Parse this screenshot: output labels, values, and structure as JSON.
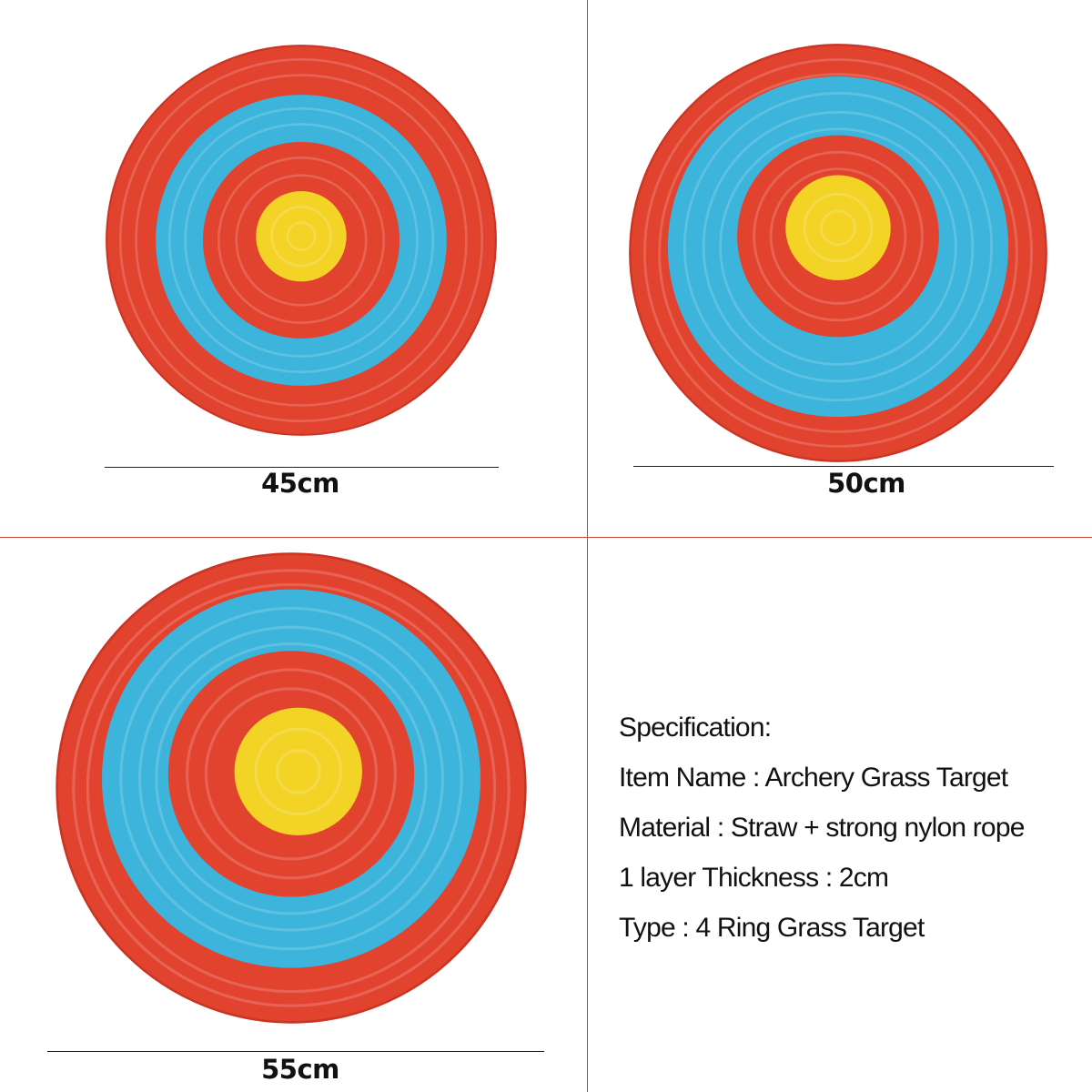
{
  "colors": {
    "outer_ring": "#e2432f",
    "middle_ring": "#3cb4dc",
    "inner_ring": "#e2432f",
    "center": "#f2d326",
    "divider": "#c8423a"
  },
  "targets": [
    {
      "size_label": "45cm"
    },
    {
      "size_label": "50cm"
    },
    {
      "size_label": "55cm"
    }
  ],
  "specification": {
    "heading": "Specification:",
    "item_name": "Item Name : Archery Grass Target",
    "material": "Material : Straw + strong nylon rope",
    "thickness": "1 layer Thickness : 2cm",
    "type": "Type : 4 Ring Grass Target"
  }
}
